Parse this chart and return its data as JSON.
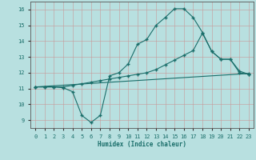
{
  "title": "",
  "xlabel": "Humidex (Indice chaleur)",
  "bg_color": "#b8e0e0",
  "grid_color": "#d8b0b0",
  "line_color": "#1a6e6a",
  "xlim": [
    -0.5,
    23.5
  ],
  "ylim": [
    8.5,
    16.5
  ],
  "xticks": [
    0,
    1,
    2,
    3,
    4,
    5,
    6,
    7,
    8,
    9,
    10,
    11,
    12,
    13,
    14,
    15,
    16,
    17,
    18,
    19,
    20,
    21,
    22,
    23
  ],
  "yticks": [
    9,
    10,
    11,
    12,
    13,
    14,
    15,
    16
  ],
  "line1_x": [
    0,
    1,
    2,
    3,
    4,
    5,
    6,
    7,
    8,
    9,
    10,
    11,
    12,
    13,
    14,
    15,
    16,
    17,
    18,
    19,
    20,
    21,
    22,
    23
  ],
  "line1_y": [
    11.1,
    11.1,
    11.1,
    11.05,
    10.8,
    9.3,
    8.85,
    9.3,
    11.8,
    12.0,
    12.55,
    13.8,
    14.1,
    15.0,
    15.5,
    16.05,
    16.05,
    15.5,
    14.55,
    13.35,
    12.85,
    12.85,
    12.0,
    11.9
  ],
  "line2_x": [
    0,
    1,
    2,
    3,
    4,
    5,
    6,
    7,
    8,
    9,
    10,
    11,
    12,
    13,
    14,
    15,
    16,
    17,
    18,
    19,
    20,
    21,
    22,
    23
  ],
  "line2_y": [
    11.1,
    11.1,
    11.1,
    11.1,
    11.2,
    11.3,
    11.4,
    11.5,
    11.6,
    11.7,
    11.8,
    11.9,
    12.0,
    12.2,
    12.5,
    12.8,
    13.1,
    13.4,
    14.5,
    13.35,
    12.85,
    12.85,
    12.1,
    11.9
  ],
  "line3_x": [
    0,
    23
  ],
  "line3_y": [
    11.1,
    11.95
  ],
  "marker": "+",
  "markersize": 3.5,
  "linewidth": 0.8
}
